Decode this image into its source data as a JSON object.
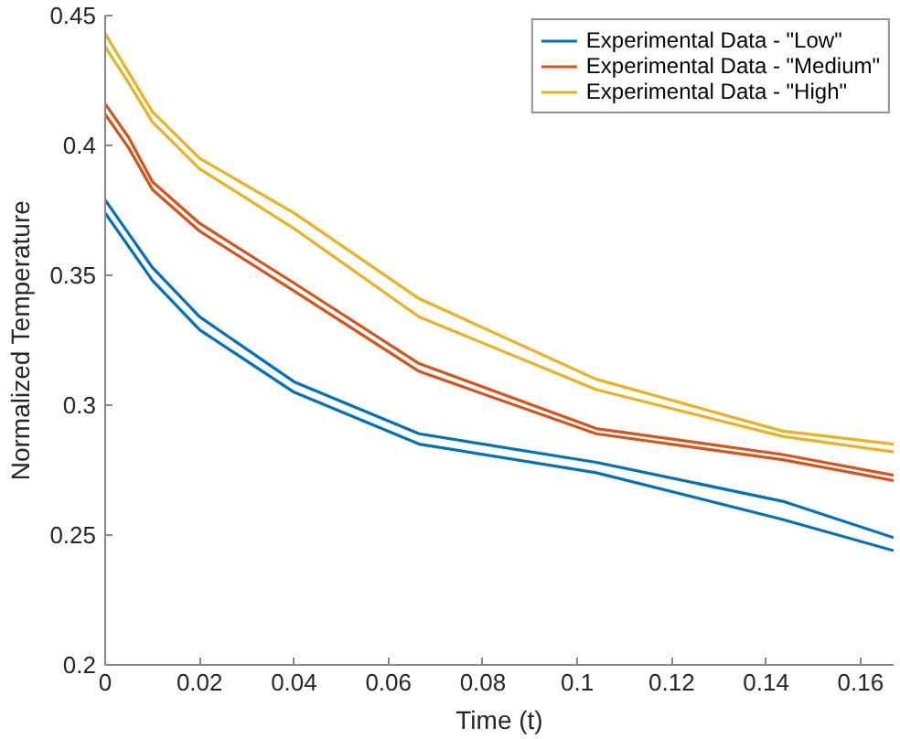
{
  "chart_data": {
    "type": "line",
    "xlabel": "Time (t)",
    "ylabel": "Normalized Temperature",
    "xlim": [
      0,
      0.167
    ],
    "ylim": [
      0.2,
      0.45
    ],
    "xticks": [
      0,
      0.02,
      0.04,
      0.06,
      0.08,
      0.1,
      0.12,
      0.14,
      0.16
    ],
    "yticks": [
      0.2,
      0.25,
      0.3,
      0.35,
      0.4,
      0.45
    ],
    "grid": false,
    "legend": "top right",
    "series": [
      {
        "name": "Experimental Data - \"Low\"",
        "color": "#0072bd",
        "x": [
          0,
          0.005,
          0.01,
          0.02,
          0.04,
          0.0665,
          0.104,
          0.1435,
          0.167
        ],
        "values": [
          0.379,
          0.366,
          0.353,
          0.334,
          0.309,
          0.289,
          0.278,
          0.263,
          0.249
        ]
      },
      {
        "color": "#0072bd",
        "x": [
          0,
          0.005,
          0.01,
          0.02,
          0.04,
          0.0665,
          0.104,
          0.1435,
          0.167
        ],
        "values": [
          0.374,
          0.361,
          0.348,
          0.329,
          0.305,
          0.285,
          0.274,
          0.256,
          0.244
        ]
      },
      {
        "name": "Experimental Data - \"Medium\"",
        "color": "#d95319",
        "x": [
          0,
          0.005,
          0.01,
          0.02,
          0.04,
          0.0665,
          0.104,
          0.1435,
          0.167
        ],
        "values": [
          0.416,
          0.403,
          0.386,
          0.37,
          0.347,
          0.316,
          0.291,
          0.281,
          0.273
        ]
      },
      {
        "color": "#d95319",
        "x": [
          0,
          0.005,
          0.01,
          0.02,
          0.04,
          0.0665,
          0.104,
          0.1435,
          0.167
        ],
        "values": [
          0.412,
          0.399,
          0.383,
          0.367,
          0.344,
          0.313,
          0.289,
          0.279,
          0.271
        ]
      },
      {
        "name": "Experimental Data - \"High\"",
        "color": "#edb120",
        "x": [
          0,
          0.005,
          0.01,
          0.02,
          0.04,
          0.0665,
          0.104,
          0.1435,
          0.167
        ],
        "values": [
          0.443,
          0.428,
          0.413,
          0.395,
          0.374,
          0.341,
          0.31,
          0.29,
          0.285
        ]
      },
      {
        "color": "#edb120",
        "x": [
          0,
          0.005,
          0.01,
          0.02,
          0.04,
          0.0665,
          0.104,
          0.1435,
          0.167
        ],
        "values": [
          0.438,
          0.424,
          0.409,
          0.391,
          0.368,
          0.334,
          0.306,
          0.288,
          0.282
        ]
      }
    ]
  }
}
